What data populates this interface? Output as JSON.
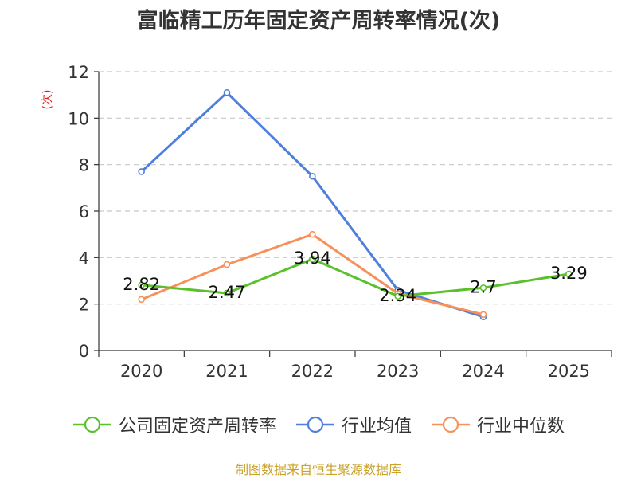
{
  "chart_data": {
    "type": "line",
    "title": "富临精工历年固定资产周转率情况(次)",
    "ylabel": "(次)",
    "xlabel": "",
    "categories": [
      "2020",
      "2021",
      "2022",
      "2023",
      "2024",
      "2025"
    ],
    "ylim": [
      0,
      12
    ],
    "yticks": [
      0,
      2,
      4,
      6,
      8,
      10,
      12
    ],
    "grid": true,
    "legend_position": "bottom",
    "series": [
      {
        "name": "公司固定资产周转率",
        "color": "#5ac02c",
        "values": [
          2.82,
          2.47,
          3.94,
          2.34,
          2.7,
          3.29
        ],
        "labels": [
          "2.82",
          "2.47",
          "3.94",
          "2.34",
          "2.7",
          "3.29"
        ]
      },
      {
        "name": "行业均值",
        "color": "#4f7fdc",
        "values": [
          7.7,
          11.1,
          7.5,
          2.6,
          1.45,
          null
        ]
      },
      {
        "name": "行业中位数",
        "color": "#f7915a",
        "values": [
          2.2,
          3.7,
          5.0,
          2.45,
          1.55,
          null
        ]
      }
    ]
  },
  "source": "制图数据来自恒生聚源数据库"
}
